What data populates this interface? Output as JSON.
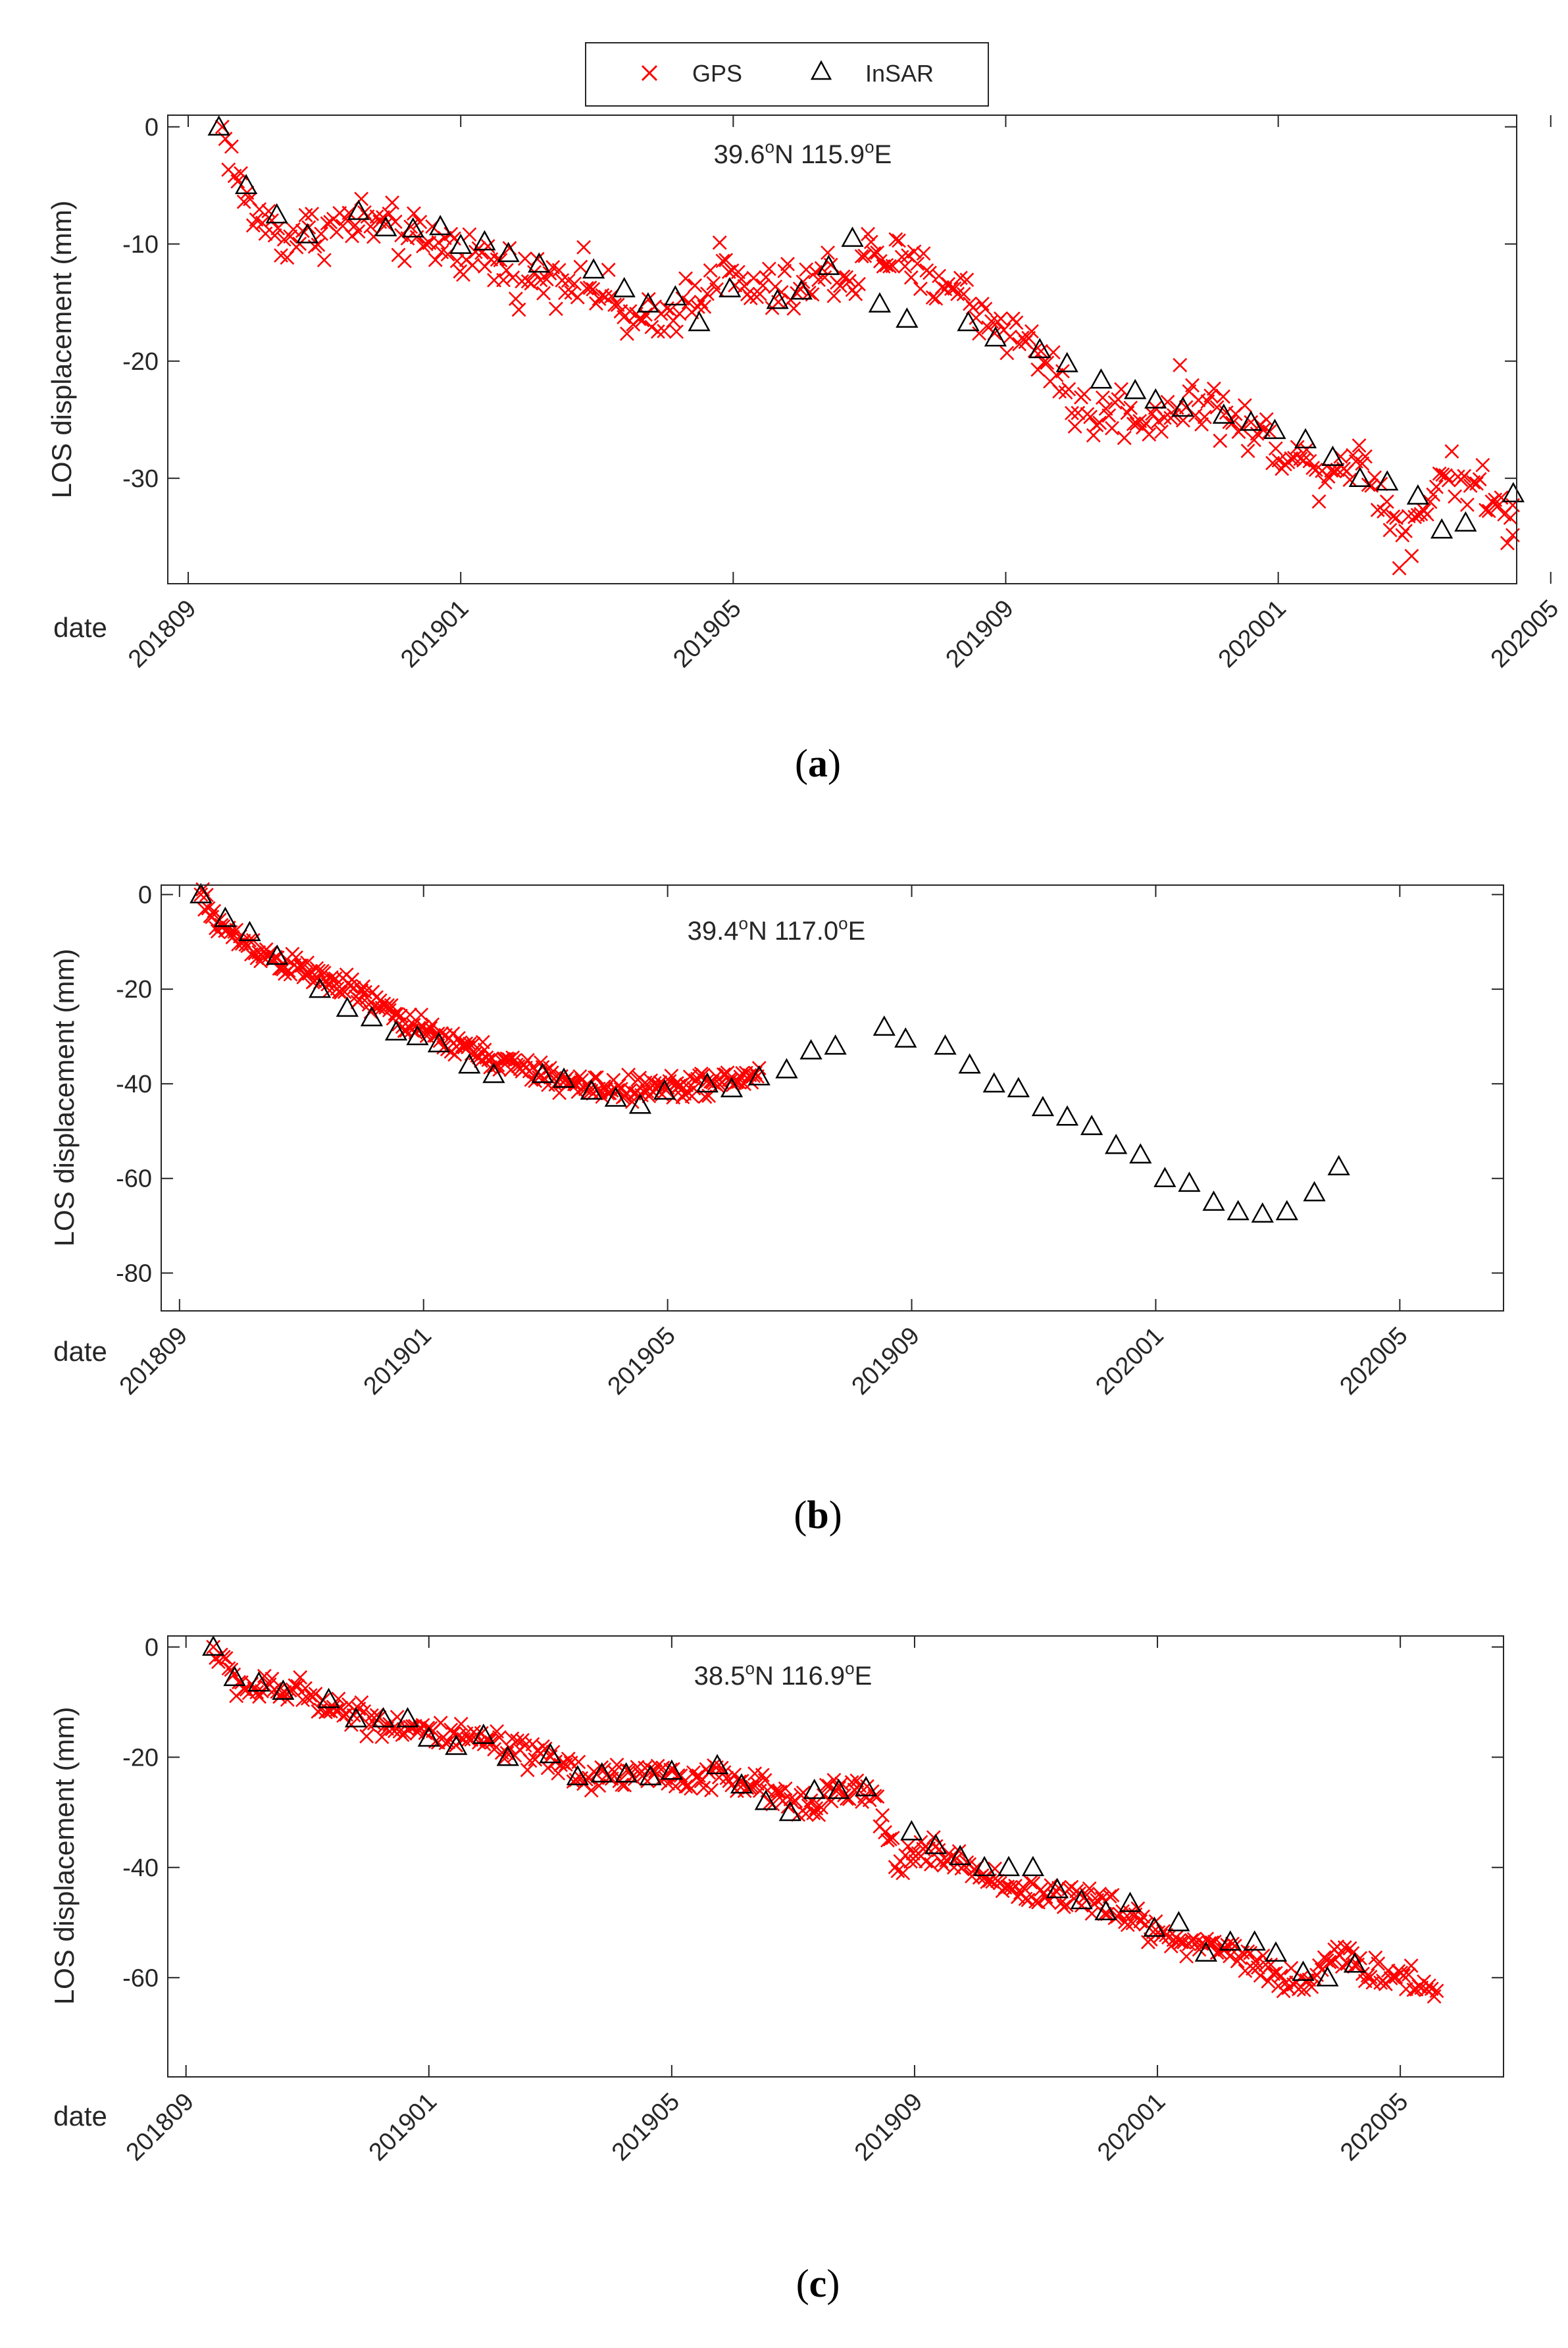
{
  "legend": {
    "gps_label": "GPS",
    "insar_label": "InSAR"
  },
  "colors": {
    "gps": "#ff0000",
    "insar": "#000000",
    "axis": "#262626"
  },
  "chart_data": [
    {
      "type": "scatter",
      "panel": "a",
      "caption_letter": "a",
      "location": {
        "lat": "39.6",
        "lat_hemi": "N",
        "lon": "115.9",
        "lon_hemi": "E",
        "degree": "o"
      },
      "ylabel": "LOS displacement (mm)",
      "xlabel": "date",
      "x_unit": "months since 201809",
      "xlim": [
        -0.3,
        19.5
      ],
      "ylim": [
        -39,
        1
      ],
      "yticks": [
        0,
        -10,
        -20,
        -30
      ],
      "xticks": [
        0,
        4,
        8,
        12,
        16,
        20
      ],
      "xticklabels": [
        "201809",
        "201901",
        "201905",
        "201909",
        "202001",
        "202005"
      ],
      "gps_anchors": [
        [
          0.5,
          0
        ],
        [
          0.6,
          -2
        ],
        [
          0.75,
          -5
        ],
        [
          0.9,
          -7
        ],
        [
          1.1,
          -8
        ],
        [
          1.4,
          -9.5
        ],
        [
          1.8,
          -9
        ],
        [
          2.2,
          -8.5
        ],
        [
          2.6,
          -8
        ],
        [
          3.0,
          -9
        ],
        [
          3.4,
          -10
        ],
        [
          3.8,
          -10
        ],
        [
          4.2,
          -11
        ],
        [
          4.6,
          -12
        ],
        [
          5.0,
          -13
        ],
        [
          5.4,
          -12.5
        ],
        [
          5.8,
          -13
        ],
        [
          6.2,
          -15
        ],
        [
          6.6,
          -17
        ],
        [
          6.9,
          -17
        ],
        [
          7.2,
          -15
        ],
        [
          7.5,
          -14
        ],
        [
          7.8,
          -12
        ],
        [
          8.2,
          -14
        ],
        [
          8.6,
          -14
        ],
        [
          9.0,
          -14
        ],
        [
          9.4,
          -12.5
        ],
        [
          9.8,
          -13
        ],
        [
          10.0,
          -10.5
        ],
        [
          10.3,
          -11
        ],
        [
          10.6,
          -12.5
        ],
        [
          10.9,
          -13
        ],
        [
          11.2,
          -13
        ],
        [
          11.6,
          -16
        ],
        [
          12.0,
          -17
        ],
        [
          12.4,
          -19
        ],
        [
          12.8,
          -21
        ],
        [
          13.0,
          -24
        ],
        [
          13.3,
          -25
        ],
        [
          13.6,
          -24
        ],
        [
          14.0,
          -25
        ],
        [
          14.4,
          -24
        ],
        [
          14.8,
          -23
        ],
        [
          15.2,
          -24.5
        ],
        [
          15.6,
          -26
        ],
        [
          16.0,
          -27
        ],
        [
          16.4,
          -29
        ],
        [
          16.8,
          -29
        ],
        [
          17.1,
          -28
        ],
        [
          17.5,
          -31
        ],
        [
          17.8,
          -35
        ],
        [
          18.1,
          -33
        ],
        [
          18.4,
          -29.5
        ],
        [
          18.8,
          -30
        ],
        [
          19.1,
          -32
        ],
        [
          19.5,
          -34
        ]
      ],
      "gps_noise_mm": 1.6,
      "gps_count": 420,
      "insar_points": [
        [
          0.45,
          0
        ],
        [
          0.85,
          -5
        ],
        [
          1.3,
          -7.5
        ],
        [
          1.75,
          -9.2
        ],
        [
          2.5,
          -7.2
        ],
        [
          2.9,
          -8.6
        ],
        [
          3.3,
          -8.7
        ],
        [
          3.7,
          -8.5
        ],
        [
          4.0,
          -10.1
        ],
        [
          4.35,
          -9.8
        ],
        [
          4.7,
          -10.8
        ],
        [
          5.15,
          -11.7
        ],
        [
          5.95,
          -12.2
        ],
        [
          6.4,
          -13.8
        ],
        [
          6.75,
          -15.1
        ],
        [
          7.15,
          -14.5
        ],
        [
          7.5,
          -16.7
        ],
        [
          7.95,
          -13.8
        ],
        [
          8.65,
          -14.8
        ],
        [
          9.0,
          -14.0
        ],
        [
          9.4,
          -11.9
        ],
        [
          9.75,
          -9.5
        ],
        [
          10.15,
          -15.1
        ],
        [
          10.55,
          -16.4
        ],
        [
          11.45,
          -16.7
        ],
        [
          11.85,
          -18.0
        ],
        [
          12.5,
          -19.0
        ],
        [
          12.9,
          -20.2
        ],
        [
          13.4,
          -21.6
        ],
        [
          13.9,
          -22.5
        ],
        [
          14.2,
          -23.3
        ],
        [
          14.6,
          -24.0
        ],
        [
          15.2,
          -24.6
        ],
        [
          15.6,
          -25.2
        ],
        [
          15.95,
          -25.9
        ],
        [
          16.4,
          -26.7
        ],
        [
          16.8,
          -28.2
        ],
        [
          17.2,
          -30.0
        ],
        [
          17.6,
          -30.3
        ],
        [
          18.05,
          -31.5
        ],
        [
          18.4,
          -34.4
        ],
        [
          18.75,
          -33.8
        ],
        [
          19.45,
          -31.3
        ]
      ]
    },
    {
      "type": "scatter",
      "panel": "b",
      "caption_letter": "b",
      "location": {
        "lat": "39.4",
        "lat_hemi": "N",
        "lon": "117.0",
        "lon_hemi": "E",
        "degree": "o"
      },
      "ylabel": "LOS displacement (mm)",
      "xlabel": "date",
      "x_unit": "months since 201809",
      "xlim": [
        -0.3,
        21.7
      ],
      "ylim": [
        -88,
        2
      ],
      "yticks": [
        0,
        -20,
        -40,
        -60,
        -80
      ],
      "xticks": [
        0,
        4,
        8,
        12,
        16,
        20
      ],
      "xticklabels": [
        "201809",
        "201901",
        "201905",
        "201909",
        "202001",
        "202005"
      ],
      "gps_anchors": [
        [
          0.35,
          0
        ],
        [
          0.5,
          -4
        ],
        [
          0.8,
          -8
        ],
        [
          1.2,
          -11
        ],
        [
          1.6,
          -14
        ],
        [
          2.0,
          -16
        ],
        [
          2.4,
          -18
        ],
        [
          2.8,
          -20
        ],
        [
          3.2,
          -23
        ],
        [
          3.6,
          -26
        ],
        [
          4.0,
          -29
        ],
        [
          4.4,
          -31
        ],
        [
          4.8,
          -33
        ],
        [
          5.2,
          -35
        ],
        [
          5.6,
          -37
        ],
        [
          6.0,
          -38
        ],
        [
          6.4,
          -40
        ],
        [
          6.8,
          -41
        ],
        [
          7.2,
          -41
        ],
        [
          7.6,
          -41
        ],
        [
          8.0,
          -41
        ],
        [
          8.4,
          -40
        ],
        [
          8.8,
          -40
        ],
        [
          9.2,
          -39
        ],
        [
          9.5,
          -38
        ]
      ],
      "gps_noise_mm": 1.8,
      "gps_count": 300,
      "insar_points": [
        [
          0.35,
          0
        ],
        [
          0.75,
          -5
        ],
        [
          1.15,
          -8
        ],
        [
          1.6,
          -13
        ],
        [
          2.3,
          -20
        ],
        [
          2.75,
          -24
        ],
        [
          3.15,
          -26
        ],
        [
          3.55,
          -29
        ],
        [
          3.9,
          -30
        ],
        [
          4.25,
          -31.5
        ],
        [
          4.75,
          -36
        ],
        [
          5.15,
          -38
        ],
        [
          5.95,
          -38
        ],
        [
          6.3,
          -39
        ],
        [
          6.75,
          -41.5
        ],
        [
          7.15,
          -43
        ],
        [
          7.55,
          -44.5
        ],
        [
          7.95,
          -41.5
        ],
        [
          8.65,
          -40
        ],
        [
          9.05,
          -41
        ],
        [
          9.5,
          -38.5
        ],
        [
          9.95,
          -37
        ],
        [
          10.35,
          -33
        ],
        [
          10.75,
          -32
        ],
        [
          11.55,
          -28
        ],
        [
          11.9,
          -30.5
        ],
        [
          12.55,
          -32
        ],
        [
          12.95,
          -36
        ],
        [
          13.35,
          -40
        ],
        [
          13.75,
          -41
        ],
        [
          14.15,
          -45
        ],
        [
          14.55,
          -47
        ],
        [
          14.95,
          -49
        ],
        [
          15.35,
          -53
        ],
        [
          15.75,
          -55
        ],
        [
          16.15,
          -60
        ],
        [
          16.55,
          -61
        ],
        [
          16.95,
          -65
        ],
        [
          17.35,
          -67
        ],
        [
          17.75,
          -67.5
        ],
        [
          18.15,
          -67
        ],
        [
          18.6,
          -63
        ],
        [
          19.0,
          -57.5
        ]
      ]
    },
    {
      "type": "scatter",
      "panel": "c",
      "caption_letter": "c",
      "location": {
        "lat": "38.5",
        "lat_hemi": "N",
        "lon": "116.9",
        "lon_hemi": "E",
        "degree": "o"
      },
      "ylabel": "LOS displacement (mm)",
      "xlabel": "date",
      "x_unit": "months since 201809",
      "xlim": [
        -0.3,
        21.7
      ],
      "ylim": [
        -78,
        2
      ],
      "yticks": [
        0,
        -20,
        -40,
        -60
      ],
      "xticks": [
        0,
        4,
        8,
        12,
        16,
        20
      ],
      "xticklabels": [
        "201809",
        "201901",
        "201905",
        "201909",
        "202001",
        "202005"
      ],
      "gps_anchors": [
        [
          0.45,
          0
        ],
        [
          0.6,
          -3
        ],
        [
          0.9,
          -7
        ],
        [
          1.3,
          -8
        ],
        [
          1.7,
          -8
        ],
        [
          2.1,
          -9
        ],
        [
          2.5,
          -11
        ],
        [
          2.9,
          -12.5
        ],
        [
          3.3,
          -14
        ],
        [
          3.7,
          -14.5
        ],
        [
          4.1,
          -16
        ],
        [
          4.5,
          -17
        ],
        [
          4.9,
          -17
        ],
        [
          5.3,
          -19
        ],
        [
          5.7,
          -20
        ],
        [
          6.1,
          -21
        ],
        [
          6.5,
          -23
        ],
        [
          6.9,
          -23.5
        ],
        [
          7.3,
          -23
        ],
        [
          7.7,
          -23
        ],
        [
          8.1,
          -23.5
        ],
        [
          8.5,
          -24
        ],
        [
          8.9,
          -24
        ],
        [
          9.3,
          -25
        ],
        [
          9.7,
          -27
        ],
        [
          10.1,
          -28
        ],
        [
          10.5,
          -27
        ],
        [
          10.9,
          -26
        ],
        [
          11.3,
          -27
        ],
        [
          11.7,
          -39
        ],
        [
          12.1,
          -37
        ],
        [
          12.5,
          -38
        ],
        [
          12.9,
          -40
        ],
        [
          13.3,
          -42
        ],
        [
          13.7,
          -44
        ],
        [
          14.1,
          -45
        ],
        [
          14.5,
          -45
        ],
        [
          14.9,
          -46
        ],
        [
          15.3,
          -48
        ],
        [
          15.7,
          -50
        ],
        [
          16.1,
          -52
        ],
        [
          16.5,
          -54
        ],
        [
          16.9,
          -54
        ],
        [
          17.3,
          -55
        ],
        [
          17.7,
          -58
        ],
        [
          18.1,
          -61
        ],
        [
          18.5,
          -60
        ],
        [
          18.8,
          -57
        ],
        [
          19.2,
          -57
        ],
        [
          19.6,
          -59
        ],
        [
          20.0,
          -60
        ],
        [
          20.4,
          -61
        ],
        [
          20.6,
          -63
        ]
      ],
      "gps_noise_mm": 1.9,
      "gps_count": 480,
      "insar_points": [
        [
          0.45,
          0
        ],
        [
          0.8,
          -5.5
        ],
        [
          1.2,
          -6.5
        ],
        [
          1.6,
          -8
        ],
        [
          2.35,
          -9.5
        ],
        [
          2.8,
          -13
        ],
        [
          3.25,
          -13
        ],
        [
          3.65,
          -13
        ],
        [
          4.0,
          -16.5
        ],
        [
          4.45,
          -18
        ],
        [
          4.9,
          -16
        ],
        [
          5.3,
          -20
        ],
        [
          6.0,
          -19.5
        ],
        [
          6.45,
          -23.5
        ],
        [
          6.85,
          -23
        ],
        [
          7.25,
          -23
        ],
        [
          7.65,
          -23.5
        ],
        [
          8.0,
          -22.5
        ],
        [
          8.75,
          -21.5
        ],
        [
          9.15,
          -25
        ],
        [
          9.55,
          -28
        ],
        [
          9.95,
          -30
        ],
        [
          10.35,
          -26
        ],
        [
          10.75,
          -26
        ],
        [
          11.2,
          -25.5
        ],
        [
          11.95,
          -33.5
        ],
        [
          12.35,
          -36
        ],
        [
          12.75,
          -38
        ],
        [
          13.15,
          -40
        ],
        [
          13.55,
          -40
        ],
        [
          13.95,
          -40
        ],
        [
          14.35,
          -44
        ],
        [
          14.75,
          -46
        ],
        [
          15.15,
          -48
        ],
        [
          15.55,
          -46.5
        ],
        [
          15.95,
          -51
        ],
        [
          16.35,
          -50
        ],
        [
          16.8,
          -55.5
        ],
        [
          17.2,
          -53.5
        ],
        [
          17.6,
          -53.5
        ],
        [
          17.95,
          -55.5
        ],
        [
          18.4,
          -59
        ],
        [
          18.8,
          -60
        ],
        [
          19.25,
          -57.5
        ]
      ]
    }
  ]
}
